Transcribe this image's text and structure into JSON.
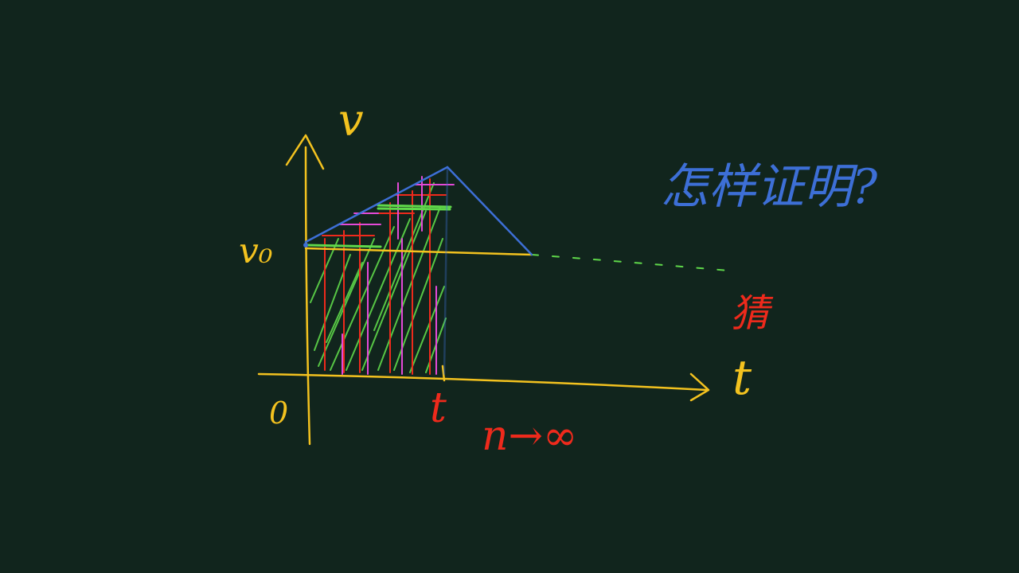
{
  "labels": {
    "v_axis": "v",
    "t_axis": "t",
    "origin": "0",
    "v0": "v₀",
    "t_tick": "t",
    "n_limit": "n→∞",
    "question": "怎样证明?",
    "conjecture": "猜"
  },
  "colors": {
    "background": "#11251d",
    "axis": "#f3c21f",
    "annotation": "#ee2a1c",
    "question": "#3d6fd6",
    "fill_strokes": "#5fd84a",
    "steps": "#e44ad8"
  }
}
